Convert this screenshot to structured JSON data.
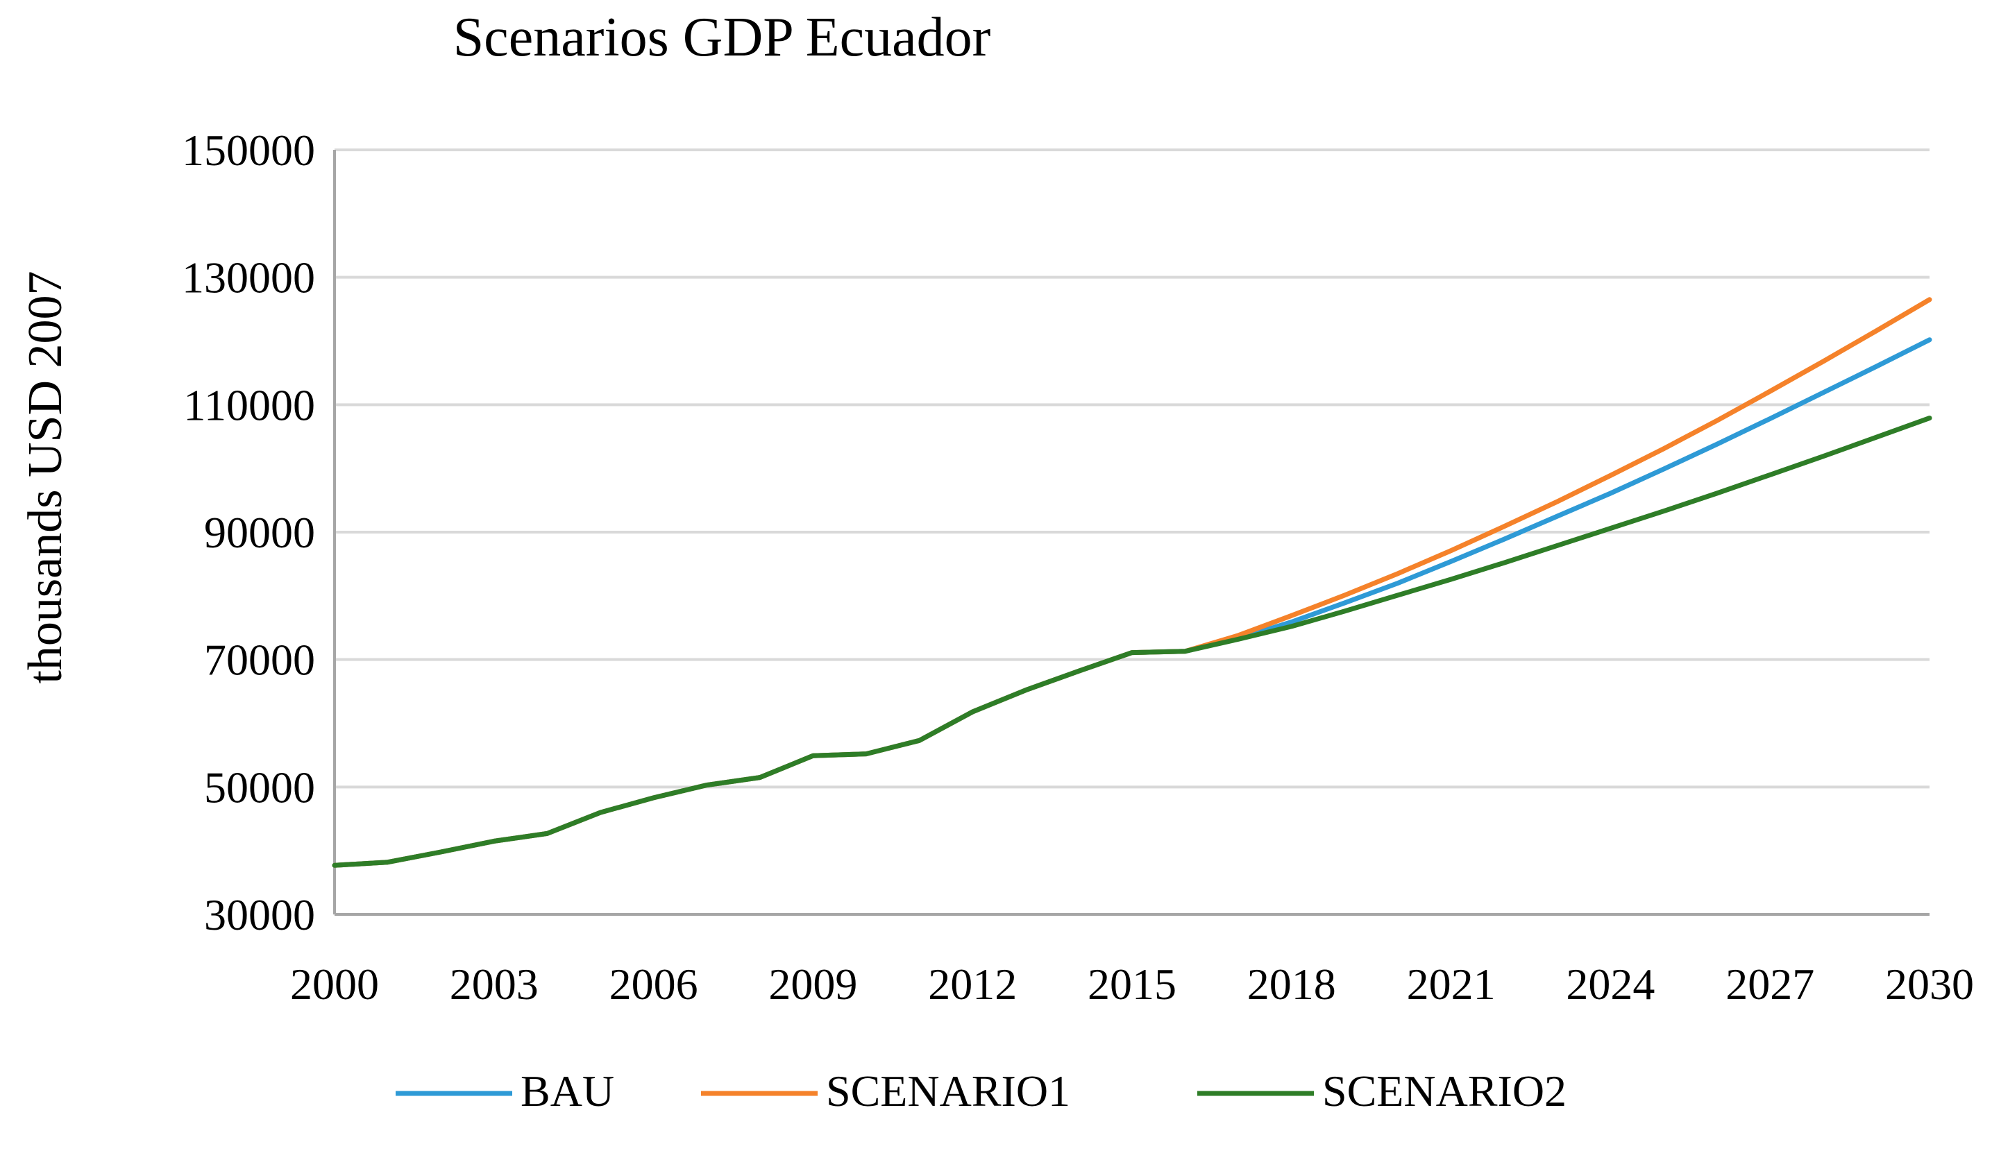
{
  "chart_data": {
    "type": "line",
    "title": "Scenarios GDP Ecuador",
    "xlabel": "",
    "ylabel": "thousands USD 2007",
    "ylim": [
      30000,
      150000
    ],
    "yticks": [
      30000,
      50000,
      70000,
      90000,
      110000,
      130000,
      150000
    ],
    "xlim": [
      2000,
      2030
    ],
    "xticks": [
      2000,
      2003,
      2006,
      2009,
      2012,
      2015,
      2018,
      2021,
      2024,
      2027,
      2030
    ],
    "grid": true,
    "legend_position": "bottom",
    "x": [
      2000,
      2001,
      2002,
      2003,
      2004,
      2005,
      2006,
      2007,
      2008,
      2009,
      2010,
      2011,
      2012,
      2013,
      2014,
      2015,
      2016,
      2017,
      2018,
      2019,
      2020,
      2021,
      2022,
      2023,
      2024,
      2025,
      2026,
      2027,
      2028,
      2029,
      2030
    ],
    "series": [
      {
        "name": "BAU",
        "color": "#2e9ad6",
        "values": [
          37700,
          38200,
          39800,
          41500,
          42700,
          46000,
          48300,
          50300,
          51500,
          54900,
          55200,
          57300,
          61800,
          65200,
          68200,
          71100,
          71300,
          73300,
          75900,
          78900,
          82000,
          85400,
          88900,
          92500,
          96100,
          99900,
          103800,
          107800,
          111900,
          116000,
          120200
        ]
      },
      {
        "name": "SCENARIO1",
        "color": "#f5822a",
        "values": [
          37700,
          38200,
          39800,
          41500,
          42700,
          46000,
          48300,
          50300,
          51500,
          54900,
          55200,
          57300,
          61800,
          65200,
          68200,
          71100,
          71300,
          73800,
          76900,
          80100,
          83500,
          87100,
          90900,
          94800,
          98900,
          103100,
          107500,
          112100,
          116800,
          121600,
          126500
        ]
      },
      {
        "name": "SCENARIO2",
        "color": "#2e7d27",
        "values": [
          37700,
          38200,
          39800,
          41500,
          42700,
          46000,
          48300,
          50300,
          51500,
          54900,
          55200,
          57300,
          61800,
          65200,
          68200,
          71100,
          71300,
          73200,
          75200,
          77600,
          80100,
          82600,
          85200,
          87900,
          90600,
          93300,
          96100,
          99000,
          101900,
          104900,
          107900
        ]
      }
    ]
  }
}
